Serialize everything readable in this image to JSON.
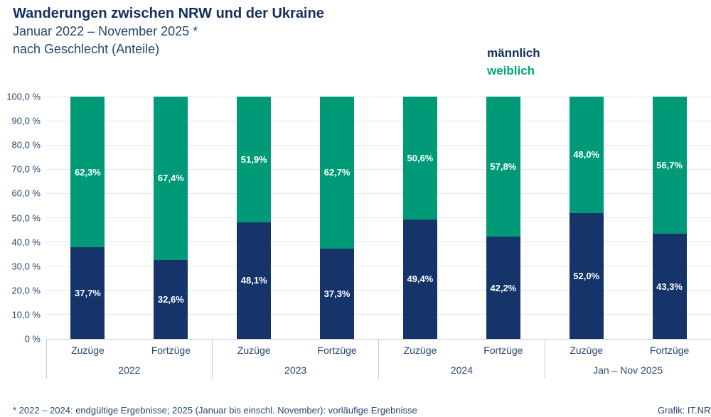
{
  "header": {
    "title": "Wanderungen zwischen NRW und der Ukraine",
    "subtitle_line1": "Januar 2022 – November 2025 *",
    "subtitle_line2": "nach Geschlecht (Anteile)"
  },
  "legend": {
    "male_label": "männlich",
    "female_label": "weiblich"
  },
  "footer": {
    "note": "* 2022 – 2024: endgültige Ergebnisse; 2025 (Januar bis einschl. November): vorläufige Ergebnisse",
    "credit": "Grafik: IT.NRW"
  },
  "colors": {
    "male": "#15356a",
    "female": "#009a78",
    "legend_male_text": "#132f5e",
    "legend_female_text": "#00a377",
    "heading_text": "#132f5e",
    "body_text": "#27456f",
    "bar_label_text": "#ffffff",
    "gridline": "#e4e5e7",
    "axis": "#c6c9cc"
  },
  "chart_data": {
    "type": "bar",
    "stacked": true,
    "title": "Wanderungen zwischen NRW und der Ukraine",
    "subtitle": "Januar 2022 – November 2025 * nach Geschlecht (Anteile)",
    "xlabel": "",
    "ylabel": "",
    "ylim": [
      0,
      100
    ],
    "grid": true,
    "legend_position": "top-right",
    "categories": [
      "Zuzüge",
      "Fortzüge",
      "Zuzüge",
      "Fortzüge",
      "Zuzüge",
      "Fortzüge",
      "Zuzüge",
      "Fortzüge"
    ],
    "group_labels": [
      "2022",
      "2023",
      "2024",
      "Jan – Nov 2025"
    ],
    "series": [
      {
        "name": "männlich",
        "stack_position": "bottom",
        "values": [
          37.7,
          32.6,
          48.1,
          37.3,
          49.4,
          42.2,
          52.0,
          43.3
        ],
        "display_labels": [
          "37,7%",
          "32,6%",
          "48,1%",
          "37,3%",
          "49,4%",
          "42,2%",
          "52,0%",
          "43,3%"
        ]
      },
      {
        "name": "weiblich",
        "stack_position": "top",
        "values": [
          62.3,
          67.4,
          51.9,
          62.7,
          50.6,
          57.8,
          48.0,
          56.7
        ],
        "display_labels": [
          "62,3%",
          "67,4%",
          "51,9%",
          "62,7%",
          "50,6%",
          "57,8%",
          "48,0%",
          "56,7%"
        ]
      }
    ],
    "y_ticks": [
      "100,0 %",
      "90,0 %",
      "80,0 %",
      "70,0 %",
      "60,0 %",
      "50,0 %",
      "40,0 %",
      "30,0 %",
      "20,0 %",
      "10,0 %",
      "0 %"
    ]
  }
}
